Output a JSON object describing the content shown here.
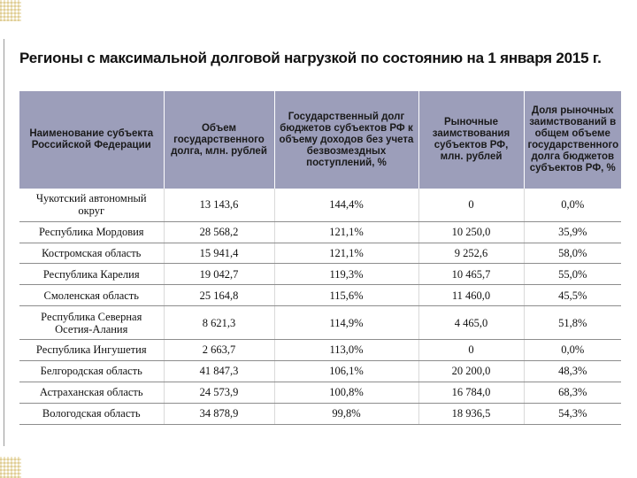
{
  "slide": {
    "title": "Регионы с максимальной долговой нагрузкой по состоянию на 1 января 2015 г."
  },
  "table": {
    "headers": [
      "Наименование субъекта Российской Федерации",
      "Объем государственного долга, млн. рублей",
      "Государственный долг бюджетов субъектов РФ к объему доходов без учета безвозмездных поступлений, %",
      "Рыночные заимствования субъектов РФ, млн. рублей",
      "Доля рыночных заимствований в общем объеме государственного долга бюджетов субъектов РФ, %"
    ],
    "rows": [
      {
        "region": "Чукотский автономный округ",
        "debt": "13 143,6",
        "debt_ratio": "144,4%",
        "market_borrowing": "0",
        "market_share": "0,0%"
      },
      {
        "region": "Республика Мордовия",
        "debt": "28 568,2",
        "debt_ratio": "121,1%",
        "market_borrowing": "10 250,0",
        "market_share": "35,9%"
      },
      {
        "region": "Костромская область",
        "debt": "15 941,4",
        "debt_ratio": "121,1%",
        "market_borrowing": "9 252,6",
        "market_share": "58,0%"
      },
      {
        "region": "Республика Карелия",
        "debt": "19 042,7",
        "debt_ratio": "119,3%",
        "market_borrowing": "10 465,7",
        "market_share": "55,0%"
      },
      {
        "region": "Смоленская область",
        "debt": "25 164,8",
        "debt_ratio": "115,6%",
        "market_borrowing": "11 460,0",
        "market_share": "45,5%"
      },
      {
        "region": "Республика Северная Осетия-Алания",
        "debt": "8 621,3",
        "debt_ratio": "114,9%",
        "market_borrowing": "4 465,0",
        "market_share": "51,8%"
      },
      {
        "region": "Республика Ингушетия",
        "debt": "2 663,7",
        "debt_ratio": "113,0%",
        "market_borrowing": "0",
        "market_share": "0,0%"
      },
      {
        "region": "Белгородская область",
        "debt": "41 847,3",
        "debt_ratio": "106,1%",
        "market_borrowing": "20 200,0",
        "market_share": "48,3%"
      },
      {
        "region": "Астраханская область",
        "debt": "24 573,9",
        "debt_ratio": "100,8%",
        "market_borrowing": "16 784,0",
        "market_share": "68,3%"
      },
      {
        "region": "Вологодская область",
        "debt": "34 878,9",
        "debt_ratio": "99,8%",
        "market_borrowing": "18 936,5",
        "market_share": "54,3%"
      }
    ]
  }
}
